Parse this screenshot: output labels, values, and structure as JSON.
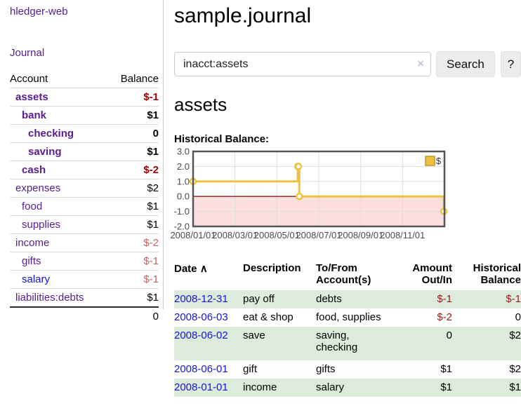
{
  "app": {
    "title": "hledger-web"
  },
  "sidebar": {
    "journal_link": "Journal",
    "accounts_table": {
      "headers": {
        "account": "Account",
        "balance": "Balance"
      },
      "rows": [
        {
          "account": "assets",
          "balance": "$-1"
        },
        {
          "account": "bank",
          "balance": "$1"
        },
        {
          "account": "checking",
          "balance": "0"
        },
        {
          "account": "saving",
          "balance": "$1"
        },
        {
          "account": "cash",
          "balance": "$-2"
        },
        {
          "account": "expenses",
          "balance": "$2"
        },
        {
          "account": "food",
          "balance": "$1"
        },
        {
          "account": "supplies",
          "balance": "$1"
        },
        {
          "account": "income",
          "balance": "$-2"
        },
        {
          "account": "gifts",
          "balance": "$-1"
        },
        {
          "account": "salary",
          "balance": "$-1"
        },
        {
          "account": "liabilities:debts",
          "balance": "$1"
        }
      ],
      "total": "0"
    }
  },
  "main": {
    "title": "sample.journal",
    "search": {
      "value": "inacct:assets",
      "search_label": "Search",
      "help_label": "?"
    },
    "account_heading": "assets",
    "chart_label": "Historical Balance:"
  },
  "icons": {
    "clear": "×",
    "sort_asc": "∧"
  },
  "colors": {
    "link_purple": "#571c92",
    "link_blue": "#1414dd",
    "negative_strong": "#a00000",
    "negative_muted": "#c46262",
    "register_negative": "#9b1b1b",
    "row_green": "#dcebdc",
    "chart_line_gold": "#edc240"
  },
  "chart_data": {
    "type": "line",
    "style": "step",
    "title": "Historical Balance",
    "xlabel": "",
    "ylabel": "",
    "xlim": [
      0,
      12
    ],
    "ylim": [
      -2,
      3
    ],
    "grid": true,
    "legend": {
      "label": "$",
      "position": "top-right"
    },
    "zero_line_color": "#8b1a1a",
    "negative_region_color": "#fbdede",
    "x_ticks": [
      {
        "x": 0,
        "label": "2008/01/01"
      },
      {
        "x": 2,
        "label": "2008/03/01"
      },
      {
        "x": 4,
        "label": "2008/05/01"
      },
      {
        "x": 6,
        "label": "2008/07/01"
      },
      {
        "x": 8,
        "label": "2008/09/01"
      },
      {
        "x": 10,
        "label": "2008/11/01"
      }
    ],
    "y_ticks": [
      3.0,
      2.0,
      1.0,
      0.0,
      -1.0,
      -2.0
    ],
    "series": [
      {
        "name": "$",
        "color": "#edc240",
        "points": [
          {
            "date": "2008-01-01",
            "x": 0,
            "y": 1
          },
          {
            "date": "2008-06-01",
            "x": 5.0,
            "y": 2
          },
          {
            "date": "2008-06-02",
            "x": 5.03,
            "y": 2
          },
          {
            "date": "2008-06-03",
            "x": 5.07,
            "y": 0
          },
          {
            "date": "2008-12-31",
            "x": 11.97,
            "y": -1
          }
        ]
      }
    ]
  },
  "register": {
    "headers": {
      "date": "Date",
      "description": "Description",
      "account": "To/From Account(s)",
      "amount": "Amount Out/In",
      "balance": "Historical Balance"
    },
    "rows": [
      {
        "date": "2008-12-31",
        "description": "pay off",
        "account": "debts",
        "amount": "$-1",
        "balance": "$-1"
      },
      {
        "date": "2008-06-03",
        "description": "eat & shop",
        "account": "food, supplies",
        "amount": "$-2",
        "balance": "0"
      },
      {
        "date": "2008-06-02",
        "description": "save",
        "account": "saving, checking",
        "amount": "0",
        "balance": "$2"
      },
      {
        "date": "2008-06-01",
        "description": "gift",
        "account": "gifts",
        "amount": "$1",
        "balance": "$2"
      },
      {
        "date": "2008-01-01",
        "description": "income",
        "account": "salary",
        "amount": "$1",
        "balance": "$1"
      }
    ]
  }
}
